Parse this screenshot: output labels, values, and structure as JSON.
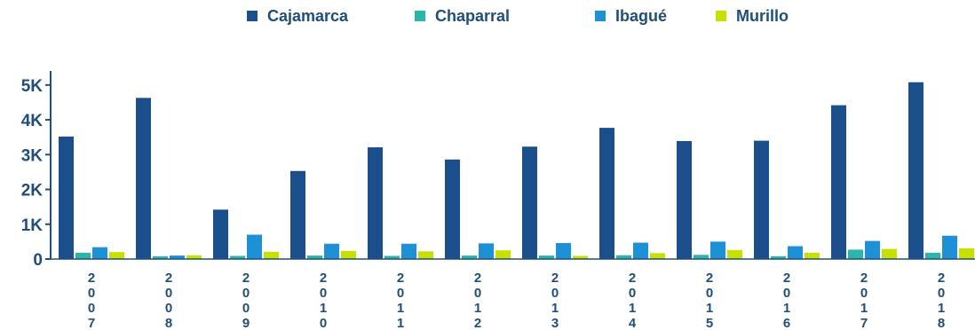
{
  "chart_data": {
    "type": "bar",
    "categories": [
      "2007",
      "2008",
      "2009",
      "2010",
      "2011",
      "2012",
      "2013",
      "2014",
      "2015",
      "2016",
      "2017",
      "2018"
    ],
    "series": [
      {
        "name": "Cajamarca",
        "color": "#1a4f8b",
        "values": [
          3520,
          4630,
          1420,
          2530,
          3210,
          2860,
          3230,
          3770,
          3390,
          3400,
          4420,
          5080
        ]
      },
      {
        "name": "Chaparral",
        "color": "#2bb5a8",
        "values": [
          180,
          80,
          90,
          100,
          90,
          100,
          100,
          110,
          120,
          80,
          270,
          180
        ]
      },
      {
        "name": "Ibagué",
        "color": "#1e90d6",
        "values": [
          340,
          100,
          700,
          440,
          440,
          450,
          460,
          470,
          500,
          370,
          520,
          670
        ]
      },
      {
        "name": "Murillo",
        "color": "#c8e000",
        "values": [
          200,
          110,
          210,
          230,
          220,
          250,
          90,
          170,
          260,
          180,
          290,
          310
        ]
      }
    ],
    "yticks": [
      {
        "value": 0,
        "label": "0"
      },
      {
        "value": 1000,
        "label": "1K"
      },
      {
        "value": 2000,
        "label": "2K"
      },
      {
        "value": 3000,
        "label": "3K"
      },
      {
        "value": 4000,
        "label": "4K"
      },
      {
        "value": 5000,
        "label": "5K"
      }
    ],
    "ylim": [
      0,
      5200
    ],
    "legend_position": "top",
    "grid": false
  }
}
